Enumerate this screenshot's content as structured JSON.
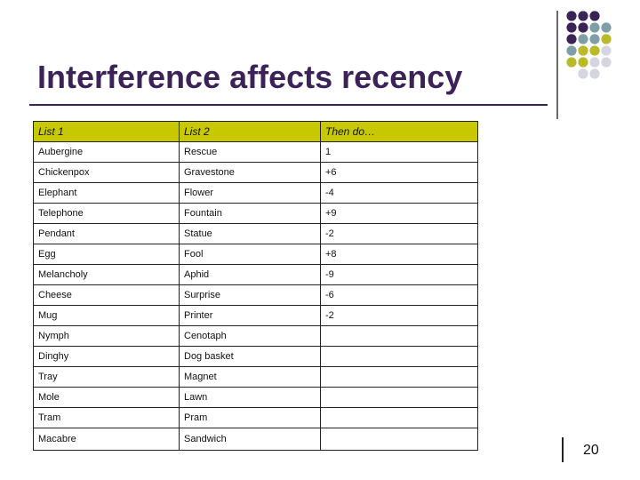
{
  "slide": {
    "title": "Interference affects recency",
    "page_number": "20"
  },
  "table": {
    "headers": [
      "List 1",
      "List 2",
      "Then do…"
    ],
    "rows": [
      [
        "Aubergine",
        "Rescue",
        "1"
      ],
      [
        "Chickenpox",
        "Gravestone",
        "+6"
      ],
      [
        "Elephant",
        "Flower",
        "-4"
      ],
      [
        "Telephone",
        "Fountain",
        "+9"
      ],
      [
        "Pendant",
        "Statue",
        "-2"
      ],
      [
        "Egg",
        "Fool",
        "+8"
      ],
      [
        "Melancholy",
        "Aphid",
        "-9"
      ],
      [
        "Cheese",
        "Surprise",
        "-6"
      ],
      [
        "Mug",
        "Printer",
        "-2"
      ],
      [
        "Nymph",
        "Cenotaph",
        ""
      ],
      [
        "Dinghy",
        "Dog basket",
        ""
      ],
      [
        "Tray",
        "Magnet",
        ""
      ],
      [
        "Mole",
        "Lawn",
        ""
      ],
      [
        "Tram",
        "Pram",
        ""
      ],
      [
        "Macabre",
        "Sandwich",
        ""
      ]
    ]
  },
  "colors": {
    "title": "#3c2357",
    "header_fill": "#c8c800",
    "dot_purple": "#3c2357",
    "dot_teal": "#7f9ea5",
    "dot_olive": "#b9b92a",
    "dot_light": "#d5d5e2"
  }
}
